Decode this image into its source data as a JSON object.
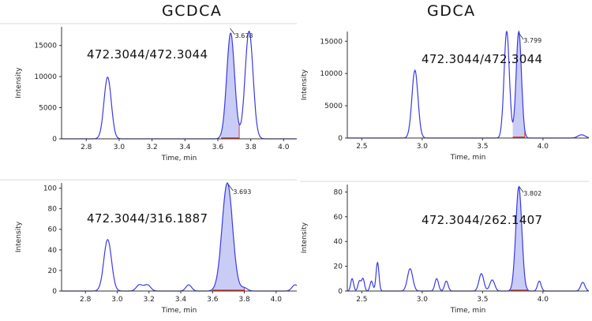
{
  "titles": {
    "left": "GCDCA",
    "right": "GDCA"
  },
  "colors": {
    "trace": "#3a3ae8",
    "fill": "#c9cdf6",
    "baseline": "#d9372b",
    "axis": "#333333"
  },
  "chart_data": [
    {
      "type": "line",
      "panel": "top-left",
      "transition": "472.3044/472.3044",
      "xlabel": "Time, min",
      "ylabel": "Intensity",
      "xlim": [
        2.65,
        4.08
      ],
      "ylim": [
        0,
        18000
      ],
      "xticks": [
        2.8,
        3.0,
        3.2,
        3.4,
        3.6,
        3.8,
        4.0
      ],
      "xtick_labels": [
        "2.8",
        "3.0",
        "3.2",
        "3.4",
        "3.6",
        "3.8",
        "4.0"
      ],
      "yticks": [
        0,
        5000,
        10000,
        15000
      ],
      "ytick_labels": [
        "0",
        "5000",
        "10000",
        "15000"
      ],
      "peaks": [
        {
          "rt": 2.93,
          "height": 9900,
          "width": 0.022
        },
        {
          "rt": 3.678,
          "height": 17000,
          "width": 0.024
        },
        {
          "rt": 3.79,
          "height": 17300,
          "width": 0.024
        }
      ],
      "integrated": {
        "from": 3.62,
        "to": 3.73,
        "label": "3.678"
      }
    },
    {
      "type": "line",
      "panel": "top-right",
      "transition": "472.3044/472.3044",
      "xlabel": "Time, min",
      "ylabel": "Intensity",
      "xlim": [
        2.38,
        4.38
      ],
      "ylim": [
        0,
        16500
      ],
      "xticks": [
        2.5,
        3.0,
        3.5,
        4.0
      ],
      "xtick_labels": [
        "2.5",
        "3.0",
        "3.5",
        "4.0"
      ],
      "yticks": [
        0,
        5000,
        10000,
        15000
      ],
      "ytick_labels": [
        "0",
        "5000",
        "10000",
        "15000"
      ],
      "peaks": [
        {
          "rt": 2.94,
          "height": 10500,
          "width": 0.025
        },
        {
          "rt": 3.7,
          "height": 16500,
          "width": 0.022
        },
        {
          "rt": 3.8,
          "height": 16500,
          "width": 0.022
        },
        {
          "rt": 4.32,
          "height": 500,
          "width": 0.03
        }
      ],
      "integrated": {
        "from": 3.75,
        "to": 3.85,
        "label": "3.799"
      }
    },
    {
      "type": "line",
      "panel": "bottom-left",
      "transition": "472.3044/316.1887",
      "xlabel": "Time, min",
      "ylabel": "Intensity",
      "xlim": [
        2.65,
        4.13
      ],
      "ylim": [
        0,
        105
      ],
      "xticks": [
        2.8,
        3.0,
        3.2,
        3.4,
        3.6,
        3.8,
        4.0
      ],
      "xtick_labels": [
        "2.8",
        "3.0",
        "3.2",
        "3.4",
        "3.6",
        "3.8",
        "4.0"
      ],
      "yticks": [
        0,
        20,
        40,
        60,
        80,
        100
      ],
      "ytick_labels": [
        "0",
        "20",
        "40",
        "60",
        "80",
        "100"
      ],
      "peaks": [
        {
          "rt": 2.94,
          "height": 50,
          "width": 0.024
        },
        {
          "rt": 3.14,
          "height": 6,
          "width": 0.02
        },
        {
          "rt": 3.19,
          "height": 6,
          "width": 0.02
        },
        {
          "rt": 3.45,
          "height": 6,
          "width": 0.018
        },
        {
          "rt": 3.693,
          "height": 105,
          "width": 0.033
        },
        {
          "rt": 3.8,
          "height": 3,
          "width": 0.02
        },
        {
          "rt": 4.12,
          "height": 6,
          "width": 0.02
        }
      ],
      "integrated": {
        "from": 3.6,
        "to": 3.8,
        "label": "3.693"
      }
    },
    {
      "type": "line",
      "panel": "bottom-right",
      "transition": "472.3044/262.1407",
      "xlabel": "Time, min",
      "ylabel": "Intensity",
      "xlim": [
        2.38,
        4.38
      ],
      "ylim": [
        0,
        86
      ],
      "xticks": [
        2.5,
        3.0,
        3.5,
        4.0
      ],
      "xtick_labels": [
        "2.5",
        "3.0",
        "3.5",
        "4.0"
      ],
      "yticks": [
        0,
        20,
        40,
        60,
        80
      ],
      "ytick_labels": [
        "0",
        "20",
        "40",
        "60",
        "80"
      ],
      "peaks": [
        {
          "rt": 2.42,
          "height": 10,
          "width": 0.012
        },
        {
          "rt": 2.48,
          "height": 8,
          "width": 0.012
        },
        {
          "rt": 2.51,
          "height": 10,
          "width": 0.012
        },
        {
          "rt": 2.58,
          "height": 8,
          "width": 0.012
        },
        {
          "rt": 2.63,
          "height": 23,
          "width": 0.012
        },
        {
          "rt": 2.9,
          "height": 18,
          "width": 0.022
        },
        {
          "rt": 3.12,
          "height": 10,
          "width": 0.015
        },
        {
          "rt": 3.2,
          "height": 8,
          "width": 0.015
        },
        {
          "rt": 3.49,
          "height": 14,
          "width": 0.02
        },
        {
          "rt": 3.58,
          "height": 9,
          "width": 0.02
        },
        {
          "rt": 3.8,
          "height": 84,
          "width": 0.025
        },
        {
          "rt": 3.97,
          "height": 8,
          "width": 0.015
        },
        {
          "rt": 4.33,
          "height": 7,
          "width": 0.018
        }
      ],
      "integrated": {
        "from": 3.73,
        "to": 3.87,
        "label": "3.802"
      }
    }
  ]
}
